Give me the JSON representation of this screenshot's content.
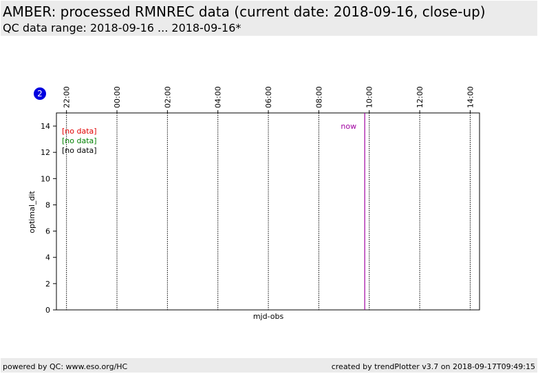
{
  "header": {
    "title": "AMBER: processed RMNREC data (current date: 2018-09-16, close-up)",
    "subtitle": "QC data range: 2018-09-16 ... 2018-09-16*"
  },
  "chart_data": {
    "type": "line",
    "badge": "2",
    "y_label": "optimal_dit",
    "x_label": "mjd-obs",
    "xlim": [
      -2.4,
      14.37
    ],
    "xticks": [
      {
        "value": -2,
        "label": "22:00"
      },
      {
        "value": 0,
        "label": "00:00"
      },
      {
        "value": 2,
        "label": "02:00"
      },
      {
        "value": 4,
        "label": "04:00"
      },
      {
        "value": 6,
        "label": "06:00"
      },
      {
        "value": 8,
        "label": "08:00"
      },
      {
        "value": 10,
        "label": "10:00"
      },
      {
        "value": 12,
        "label": "12:00"
      },
      {
        "value": 14,
        "label": "14:00"
      }
    ],
    "ylim": [
      0,
      15
    ],
    "yticks": [
      0,
      2,
      4,
      6,
      8,
      10,
      12,
      14
    ],
    "grid_x": true,
    "annotations": [
      {
        "text": "[no data]",
        "color": "#e00000"
      },
      {
        "text": "[no data]",
        "color": "#008000"
      },
      {
        "text": "[no data]",
        "color": "#000000"
      }
    ],
    "now": {
      "label": "now",
      "value": 9.82,
      "color": "#a000a0"
    }
  },
  "footer": {
    "left": "powered by QC: www.eso.org/HC",
    "right": "created by trendPlotter v3.7 on 2018-09-17T09:49:15"
  }
}
